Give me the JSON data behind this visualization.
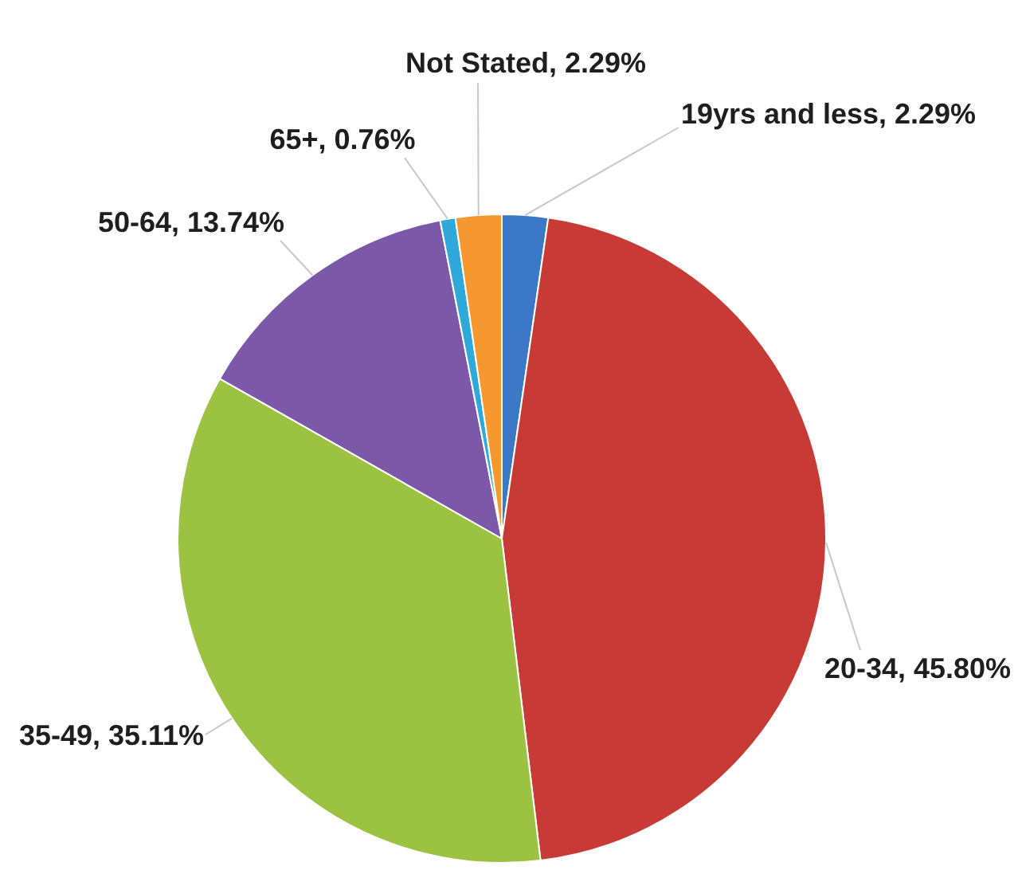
{
  "chart_data": {
    "type": "pie",
    "categories": [
      "19yrs and less",
      "20-34",
      "35-49",
      "50-64",
      "65+",
      "Not Stated"
    ],
    "values": [
      2.29,
      45.8,
      35.11,
      13.74,
      0.76,
      2.29
    ],
    "value_labels": [
      "2.29%",
      "45.80%",
      "35.11%",
      "13.74%",
      "0.76%",
      "2.29%"
    ],
    "colors": [
      "#3b78c8",
      "#c73a35",
      "#9bc240",
      "#7b59a8",
      "#2fa9d9",
      "#f5982f"
    ]
  }
}
